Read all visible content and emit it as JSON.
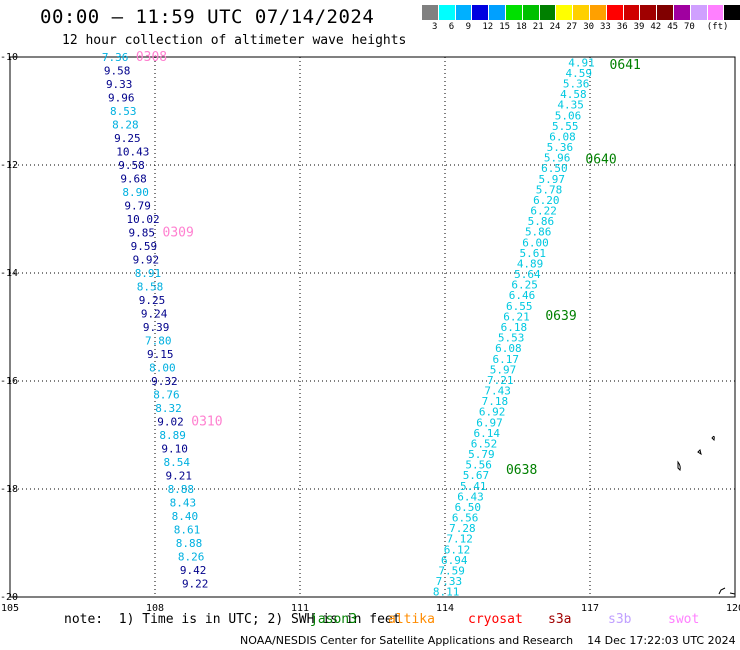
{
  "header": {
    "title": "00:00 – 11:59 UTC 07/14/2024",
    "subtitle": "12 hour collection of altimeter wave heights"
  },
  "scale": {
    "colors": [
      "#808080",
      "#00ffff",
      "#00b0ff",
      "#0000e0",
      "#00a0ff",
      "#00e000",
      "#00c000",
      "#008000",
      "#ffff00",
      "#ffd000",
      "#ffa000",
      "#ff0000",
      "#d00000",
      "#a00000",
      "#800000",
      "#a000a0",
      "#d0a0ff",
      "#ff80ff",
      "#000000"
    ],
    "labels": [
      "3",
      "6",
      "9",
      "12",
      "15",
      "18",
      "21",
      "24",
      "27",
      "30",
      "33",
      "36",
      "39",
      "42",
      "45",
      "70",
      "(ft)"
    ]
  },
  "chart_data": {
    "type": "scatter",
    "xlim": [
      105,
      120
    ],
    "ylim": [
      -20,
      -10
    ],
    "x_ticks": [
      "105",
      "108",
      "111",
      "114",
      "117",
      "120"
    ],
    "y_ticks": [
      "-10",
      "-12",
      "-14",
      "-16",
      "-18",
      "-20"
    ],
    "grid": true,
    "west_track_color": "#00b0e0",
    "west_track": [
      {
        "lat": -10.0,
        "v": "7.36",
        "c": "#00b0e0"
      },
      {
        "lat": -10.25,
        "v": "9.58",
        "c": "#00008b"
      },
      {
        "lat": -10.5,
        "v": "9.33",
        "c": "#00008b"
      },
      {
        "lat": -10.75,
        "v": "9.96",
        "c": "#00008b"
      },
      {
        "lat": -11.0,
        "v": "8.53",
        "c": "#00b0e0"
      },
      {
        "lat": -11.25,
        "v": "8.28",
        "c": "#00b0e0"
      },
      {
        "lat": -11.5,
        "v": "9.25",
        "c": "#00008b"
      },
      {
        "lat": -11.75,
        "v": "10.43",
        "c": "#00008b"
      },
      {
        "lat": -12.0,
        "v": "9.58",
        "c": "#00008b"
      },
      {
        "lat": -12.25,
        "v": "9.68",
        "c": "#00008b"
      },
      {
        "lat": -12.5,
        "v": "8.90",
        "c": "#00b0e0"
      },
      {
        "lat": -12.75,
        "v": "9.79",
        "c": "#00008b"
      },
      {
        "lat": -13.0,
        "v": "10.02",
        "c": "#00008b"
      },
      {
        "lat": -13.25,
        "v": "9.85",
        "c": "#00008b"
      },
      {
        "lat": -13.5,
        "v": "9.59",
        "c": "#00008b"
      },
      {
        "lat": -13.75,
        "v": "9.92",
        "c": "#00008b"
      },
      {
        "lat": -14.0,
        "v": "8.91",
        "c": "#00b0e0"
      },
      {
        "lat": -14.25,
        "v": "8.58",
        "c": "#00b0e0"
      },
      {
        "lat": -14.5,
        "v": "9.25",
        "c": "#00008b"
      },
      {
        "lat": -14.75,
        "v": "9.24",
        "c": "#00008b"
      },
      {
        "lat": -15.0,
        "v": "9.39",
        "c": "#00008b"
      },
      {
        "lat": -15.25,
        "v": "7.80",
        "c": "#00b0e0"
      },
      {
        "lat": -15.5,
        "v": "9.15",
        "c": "#00008b"
      },
      {
        "lat": -15.75,
        "v": "8.00",
        "c": "#00b0e0"
      },
      {
        "lat": -16.0,
        "v": "9.32",
        "c": "#00008b"
      },
      {
        "lat": -16.25,
        "v": "8.76",
        "c": "#00b0e0"
      },
      {
        "lat": -16.5,
        "v": "8.32",
        "c": "#00b0e0"
      },
      {
        "lat": -16.75,
        "v": "9.02",
        "c": "#00008b"
      },
      {
        "lat": -17.0,
        "v": "8.89",
        "c": "#00b0e0"
      },
      {
        "lat": -17.25,
        "v": "9.10",
        "c": "#00008b"
      },
      {
        "lat": -17.5,
        "v": "8.54",
        "c": "#00b0e0"
      },
      {
        "lat": -17.75,
        "v": "9.21",
        "c": "#00008b"
      },
      {
        "lat": -18.0,
        "v": "8.88",
        "c": "#00b0e0"
      },
      {
        "lat": -18.25,
        "v": "8.43",
        "c": "#00b0e0"
      },
      {
        "lat": -18.5,
        "v": "8.40",
        "c": "#00b0e0"
      },
      {
        "lat": -18.75,
        "v": "8.61",
        "c": "#00b0e0"
      },
      {
        "lat": -19.0,
        "v": "8.88",
        "c": "#00b0e0"
      },
      {
        "lat": -19.25,
        "v": "8.26",
        "c": "#00b0e0"
      },
      {
        "lat": -19.5,
        "v": "9.42",
        "c": "#00008b"
      },
      {
        "lat": -19.75,
        "v": "9.22",
        "c": "#00008b"
      }
    ],
    "east_track_color": "#00c8e0",
    "east_track": [
      "4.91",
      "4.59",
      "5.36",
      "4.58",
      "4.35",
      "5.06",
      "5.55",
      "6.08",
      "5.36",
      "5.96",
      "6.50",
      "5.97",
      "5.78",
      "6.20",
      "6.22",
      "5.86",
      "5.86",
      "6.00",
      "5.61",
      "4.89",
      "5.64",
      "6.25",
      "6.46",
      "6.55",
      "6.21",
      "6.18",
      "5.53",
      "6.08",
      "6.17",
      "5.97",
      "7.21",
      "7.43",
      "7.18",
      "6.92",
      "6.97",
      "6.14",
      "6.52",
      "5.79",
      "5.56",
      "5.67",
      "5.41",
      "6.43",
      "6.50",
      "6.56",
      "7.28",
      "7.12",
      "6.12",
      "6.94",
      "7.59",
      "7.33",
      "8.11"
    ],
    "time_labels": [
      {
        "text": "0308",
        "track": "west",
        "lat": -10.0,
        "color": "#ff80d0"
      },
      {
        "text": "0309",
        "track": "west",
        "lat": -13.25,
        "color": "#ff80d0"
      },
      {
        "text": "0310",
        "track": "west",
        "lat": -16.75,
        "color": "#ff80d0"
      },
      {
        "text": "0641",
        "track": "east",
        "lat": -10.15,
        "color": "#008000"
      },
      {
        "text": "0640",
        "track": "east",
        "lat": -11.9,
        "color": "#008000"
      },
      {
        "text": "0639",
        "track": "east",
        "lat": -14.8,
        "color": "#008000"
      },
      {
        "text": "0638",
        "track": "east",
        "lat": -17.65,
        "color": "#008000"
      }
    ]
  },
  "footer": {
    "note": "note:  1) Time is in UTC; 2) SWH is in feet",
    "credit": "NOAA/NESDIS Center for Satellite Applications and Research    14 Dec 17:22:03 UTC 2024",
    "legend": [
      {
        "label": "jason3",
        "color": "#008000"
      },
      {
        "label": "altika",
        "color": "#ff8c00"
      },
      {
        "label": "cryosat",
        "color": "#ff0000"
      },
      {
        "label": "s3a",
        "color": "#a00000"
      },
      {
        "label": "s3b",
        "color": "#c0a0ff"
      },
      {
        "label": "swot",
        "color": "#ff80ff"
      }
    ]
  }
}
